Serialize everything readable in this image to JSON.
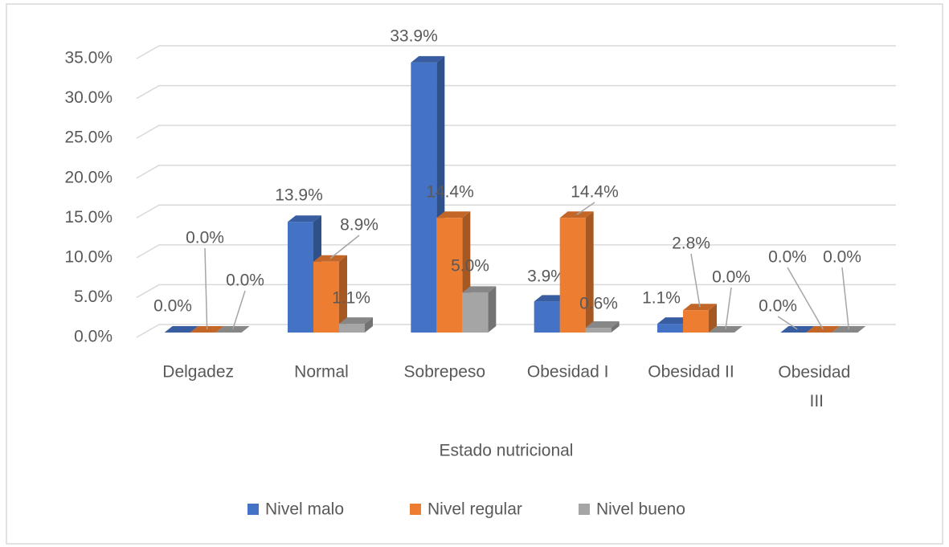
{
  "chart_data": {
    "type": "bar3d",
    "x_label": "Estado nutricional",
    "categories": [
      "Delgadez",
      "Normal",
      "Sobrepeso",
      "Obesidad I",
      "Obesidad II",
      "Obesidad III"
    ],
    "series": [
      {
        "name": "Nivel malo",
        "color": "#4472c4",
        "values": [
          0,
          13.9,
          33.9,
          3.9,
          1.1,
          0
        ],
        "value_labels": [
          "0.0%",
          "13.9%",
          "33.9%",
          "3.9%",
          "1.1%",
          "0.0%"
        ]
      },
      {
        "name": "Nivel regular",
        "color": "#ed7d31",
        "values": [
          0,
          8.9,
          14.4,
          14.4,
          2.8,
          0
        ],
        "value_labels": [
          "0.0%",
          "8.9%",
          "14.4%",
          "14.4%",
          "2.8%",
          "0.0%"
        ]
      },
      {
        "name": "Nivel bueno",
        "color": "#a5a5a5",
        "values": [
          0,
          1.1,
          5.0,
          0.6,
          0,
          0
        ],
        "value_labels": [
          "0.0%",
          "1.1%",
          "5.0%",
          "0.6%",
          "0.0%",
          "0.0%"
        ]
      }
    ],
    "ylim": [
      0,
      35
    ],
    "yticks": [
      {
        "value": 0,
        "label": "0.0%"
      },
      {
        "value": 5,
        "label": "5.0%"
      },
      {
        "value": 10,
        "label": "10.0%"
      },
      {
        "value": 15,
        "label": "15.0%"
      },
      {
        "value": 20,
        "label": "20.0%"
      },
      {
        "value": 25,
        "label": "25.0%"
      },
      {
        "value": 30,
        "label": "30.0%"
      },
      {
        "value": 35,
        "label": "35.0%"
      }
    ],
    "grid": true,
    "legend": "bottom"
  }
}
